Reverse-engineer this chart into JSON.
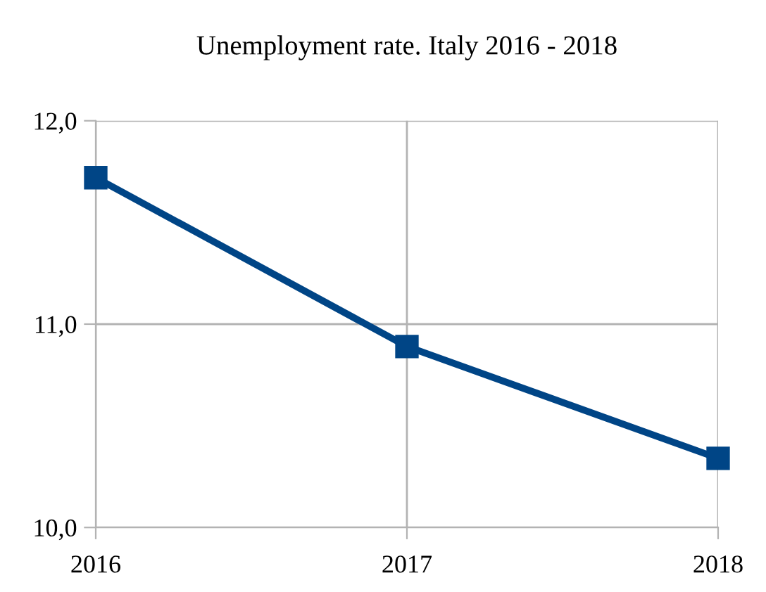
{
  "chart_data": {
    "type": "line",
    "title": "Unemployment rate. Italy 2016 - 2018",
    "x": [
      2016,
      2017,
      2018
    ],
    "series": [
      {
        "color": "#004586",
        "values": [
          11.72,
          10.89,
          10.34
        ]
      }
    ],
    "xlim": [
      2016,
      2018
    ],
    "xticks": [
      2016,
      2017,
      2018
    ],
    "ylim": [
      10,
      12
    ],
    "yticks": [
      {
        "value": 10,
        "label": "10,0"
      },
      {
        "value": 11,
        "label": "11,0"
      },
      {
        "value": 12,
        "label": "12,0"
      }
    ],
    "grid": true,
    "marker": "square",
    "line_style": "solid",
    "legend": false
  }
}
